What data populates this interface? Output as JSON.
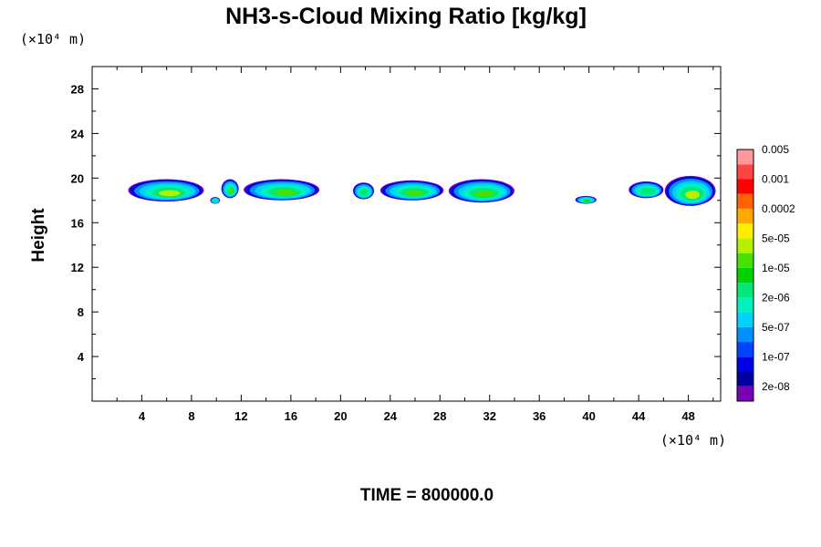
{
  "chart_data": {
    "type": "heatmap",
    "title": "NH3-s-Cloud Mixing Ratio [kg/kg]",
    "ylabel": "Height",
    "xunit": "(×10⁴ m)",
    "yunit": "(×10⁴ m)",
    "footer": "TIME = 800000.0",
    "xlim": [
      0,
      50.6
    ],
    "ylim": [
      0,
      30
    ],
    "xticks": [
      "4",
      "8",
      "12",
      "16",
      "20",
      "24",
      "28",
      "32",
      "36",
      "40",
      "44",
      "48"
    ],
    "xtick_values": [
      4,
      8,
      12,
      16,
      20,
      24,
      28,
      32,
      36,
      40,
      44,
      48
    ],
    "yticks": [
      "4",
      "8",
      "12",
      "16",
      "20",
      "24",
      "28"
    ],
    "ytick_values": [
      4,
      8,
      12,
      16,
      20,
      24,
      28
    ],
    "colorbar": {
      "labels": [
        "2e-08",
        "1e-07",
        "5e-07",
        "2e-06",
        "1e-05",
        "5e-05",
        "0.0002",
        "0.001",
        "0.005"
      ],
      "colors": [
        "#7a00b4",
        "#0000a0",
        "#0000e6",
        "#0044ff",
        "#0090ff",
        "#00d2ff",
        "#00f0c0",
        "#00e878",
        "#00d200",
        "#48e000",
        "#b4f000",
        "#ffee00",
        "#ffaa00",
        "#ff6400",
        "#ff0000",
        "#ff4444",
        "#ff9999"
      ]
    },
    "clouds": [
      {
        "x0": 2.9,
        "x1": 9.0,
        "ylo": 17.9,
        "yhi": 19.9,
        "core": "#b4f000"
      },
      {
        "x0": 9.5,
        "x1": 10.3,
        "ylo": 17.7,
        "yhi": 18.3,
        "core": "#00e878"
      },
      {
        "x0": 10.4,
        "x1": 11.8,
        "ylo": 18.2,
        "yhi": 19.9,
        "core": "#48e000"
      },
      {
        "x0": 12.2,
        "x1": 18.3,
        "ylo": 18.0,
        "yhi": 19.9,
        "core": "#48e000"
      },
      {
        "x0": 21.0,
        "x1": 22.7,
        "ylo": 18.1,
        "yhi": 19.6,
        "core": "#00e878"
      },
      {
        "x0": 23.2,
        "x1": 28.3,
        "ylo": 18.0,
        "yhi": 19.8,
        "core": "#48e000"
      },
      {
        "x0": 28.7,
        "x1": 34.0,
        "ylo": 17.8,
        "yhi": 19.9,
        "core": "#48e000"
      },
      {
        "x0": 38.9,
        "x1": 40.6,
        "ylo": 17.7,
        "yhi": 18.4,
        "core": "#00d200"
      },
      {
        "x0": 43.2,
        "x1": 46.0,
        "ylo": 18.2,
        "yhi": 19.7,
        "core": "#00e878"
      },
      {
        "x0": 46.1,
        "x1": 50.2,
        "ylo": 17.5,
        "yhi": 20.2,
        "core": "#b4f000"
      }
    ]
  }
}
